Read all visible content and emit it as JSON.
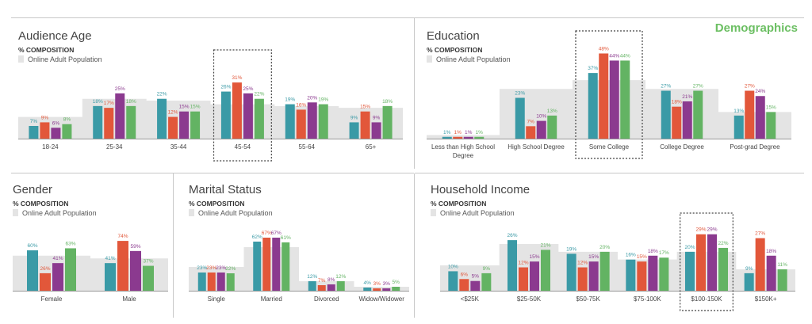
{
  "brand": "Demographics",
  "colors": {
    "series": [
      "#3a9aa6",
      "#e2573a",
      "#8b3a8f",
      "#63b363"
    ],
    "population": "#e4e4e4",
    "axis": "#9a9a9a",
    "highlight_border": "#444444"
  },
  "chart_data": [
    {
      "id": "audience-age",
      "type": "bar",
      "title": "Audience Age",
      "subtitle": "% COMPOSITION",
      "legend": "Online Adult Population",
      "categories": [
        "18-24",
        "25-34",
        "35-44",
        "45-54",
        "55-64",
        "65+"
      ],
      "population": [
        12,
        22,
        21,
        19,
        18,
        17
      ],
      "series": [
        {
          "values": [
            7,
            18,
            22,
            26,
            19,
            9
          ]
        },
        {
          "values": [
            9,
            17,
            12,
            31,
            16,
            15
          ]
        },
        {
          "values": [
            6,
            25,
            15,
            25,
            20,
            9
          ]
        },
        {
          "values": [
            8,
            18,
            15,
            22,
            19,
            18
          ]
        }
      ],
      "highlight": "45-54"
    },
    {
      "id": "education",
      "type": "bar",
      "title": "Education",
      "subtitle": "% COMPOSITION",
      "legend": "Online Adult Population",
      "categories": [
        "Less than High School Degree",
        "High School Degree",
        "Some College",
        "College Degree",
        "Post-grad Degree"
      ],
      "population": [
        2,
        28,
        33,
        28,
        15
      ],
      "series": [
        {
          "values": [
            1,
            23,
            37,
            27,
            13
          ]
        },
        {
          "values": [
            1,
            7,
            48,
            18,
            27
          ]
        },
        {
          "values": [
            1,
            10,
            44,
            21,
            24
          ]
        },
        {
          "values": [
            1,
            13,
            44,
            27,
            15
          ]
        }
      ],
      "highlight": "Some College"
    },
    {
      "id": "gender",
      "type": "bar",
      "title": "Gender",
      "subtitle": "% COMPOSITION",
      "legend": "Online Adult Population",
      "categories": [
        "Female",
        "Male"
      ],
      "population": [
        52,
        48
      ],
      "series": [
        {
          "values": [
            60,
            41
          ]
        },
        {
          "values": [
            26,
            74
          ]
        },
        {
          "values": [
            41,
            59
          ]
        },
        {
          "values": [
            63,
            37
          ]
        }
      ]
    },
    {
      "id": "marital-status",
      "type": "bar",
      "title": "Marital Status",
      "subtitle": "% COMPOSITION",
      "legend": "Online Adult Population",
      "categories": [
        "Single",
        "Married",
        "Divorced",
        "Widow/Widower"
      ],
      "population": [
        30,
        55,
        12,
        5
      ],
      "series": [
        {
          "values": [
            23,
            62,
            12,
            4
          ]
        },
        {
          "values": [
            23,
            67,
            7,
            3
          ]
        },
        {
          "values": [
            23,
            67,
            8,
            3
          ]
        },
        {
          "values": [
            22,
            61,
            12,
            5
          ]
        }
      ]
    },
    {
      "id": "household-income",
      "type": "bar",
      "title": "Household Income",
      "subtitle": "% COMPOSITION",
      "legend": "Online Adult Population",
      "categories": [
        "<$25K",
        "$25-50K",
        "$50-75K",
        "$75-100K",
        "$100-150K",
        "$150K+"
      ],
      "population": [
        13,
        24,
        20,
        16,
        20,
        11
      ],
      "series": [
        {
          "values": [
            10,
            26,
            19,
            16,
            20,
            9
          ]
        },
        {
          "values": [
            6,
            12,
            12,
            15,
            29,
            27
          ]
        },
        {
          "values": [
            5,
            15,
            15,
            18,
            29,
            18
          ]
        },
        {
          "values": [
            9,
            21,
            20,
            17,
            22,
            11
          ]
        }
      ],
      "highlight": "$100-150K"
    }
  ]
}
